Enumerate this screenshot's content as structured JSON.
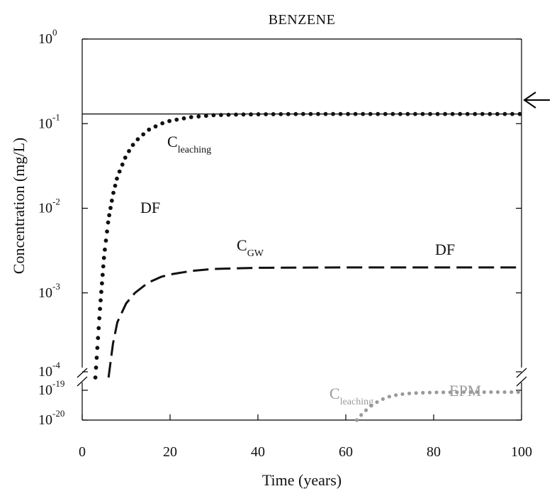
{
  "chart_data": {
    "type": "line",
    "title": "BENZENE",
    "xlabel": "Time (years)",
    "ylabel": "Concentration (mg/L)",
    "xlim": [
      0,
      100
    ],
    "x_ticks": [
      "0",
      "20",
      "40",
      "60",
      "80",
      "100"
    ],
    "y_scale": "log (broken axis)",
    "upper_panel": {
      "ylim_log10": [
        -4,
        0
      ],
      "y_ticks": [
        {
          "base": "10",
          "exp": "0",
          "log": 0
        },
        {
          "base": "10",
          "exp": "-1",
          "log": -1
        },
        {
          "base": "10",
          "exp": "-2",
          "log": -2
        },
        {
          "base": "10",
          "exp": "-3",
          "log": -3
        },
        {
          "base": "10",
          "exp": "-4",
          "log": -4
        }
      ]
    },
    "lower_panel": {
      "ylim_log10": [
        -20,
        -19
      ],
      "y_ticks": [
        {
          "base": "10",
          "exp": "-19",
          "log": -19
        },
        {
          "base": "10",
          "exp": "-20",
          "log": -20
        }
      ]
    },
    "reference_line": {
      "y": 0.13
    },
    "arrow_marker": {
      "side": "right",
      "y": 0.19
    },
    "series": [
      {
        "key": "leaching_df",
        "panel": "upper",
        "style": "dotted",
        "color": "#111111",
        "plateau": 0.13,
        "points": [
          [
            3,
            0.0001
          ],
          [
            4,
            0.0006
          ],
          [
            5,
            0.0028
          ],
          [
            6,
            0.0075
          ],
          [
            7,
            0.0145
          ],
          [
            8,
            0.0235
          ],
          [
            10,
            0.042
          ],
          [
            12,
            0.061
          ],
          [
            15,
            0.084
          ],
          [
            18,
            0.1
          ],
          [
            20,
            0.108
          ],
          [
            25,
            0.12
          ],
          [
            30,
            0.126
          ],
          [
            35,
            0.128
          ],
          [
            40,
            0.129
          ],
          [
            50,
            0.13
          ],
          [
            60,
            0.13
          ],
          [
            80,
            0.13
          ],
          [
            100,
            0.13
          ]
        ]
      },
      {
        "key": "gw_df",
        "panel": "upper",
        "style": "dashed",
        "color": "#111111",
        "plateau": 0.002,
        "points": [
          [
            6,
            0.0001
          ],
          [
            7,
            0.00025
          ],
          [
            8,
            0.00045
          ],
          [
            10,
            0.00075
          ],
          [
            12,
            0.001
          ],
          [
            15,
            0.00132
          ],
          [
            18,
            0.00155
          ],
          [
            20,
            0.00165
          ],
          [
            25,
            0.00182
          ],
          [
            30,
            0.00192
          ],
          [
            40,
            0.00198
          ],
          [
            60,
            0.002
          ],
          [
            80,
            0.002
          ],
          [
            100,
            0.002
          ]
        ]
      },
      {
        "key": "leaching_epm",
        "panel": "lower",
        "style": "dotted",
        "color": "#9a9a9a",
        "points": [
          [
            62.5,
            1e-20
          ],
          [
            64,
            1.8e-20
          ],
          [
            66,
            3.2e-20
          ],
          [
            68,
            4.8e-20
          ],
          [
            70,
            6.2e-20
          ],
          [
            72,
            7.2e-20
          ],
          [
            75,
            8e-20
          ],
          [
            80,
            8.5e-20
          ],
          [
            90,
            8.7e-20
          ],
          [
            100,
            8.7e-20
          ]
        ]
      }
    ],
    "annotations": [
      {
        "key": "leach_df_c",
        "base": "C",
        "sub": "leaching"
      },
      {
        "key": "leach_df_tag",
        "text": "DF"
      },
      {
        "key": "gw_c",
        "base": "C",
        "sub": "GW"
      },
      {
        "key": "gw_tag",
        "text": "DF"
      },
      {
        "key": "epm_c",
        "base": "C",
        "sub": "leaching"
      },
      {
        "key": "epm_tag",
        "text": "EPM"
      }
    ]
  }
}
